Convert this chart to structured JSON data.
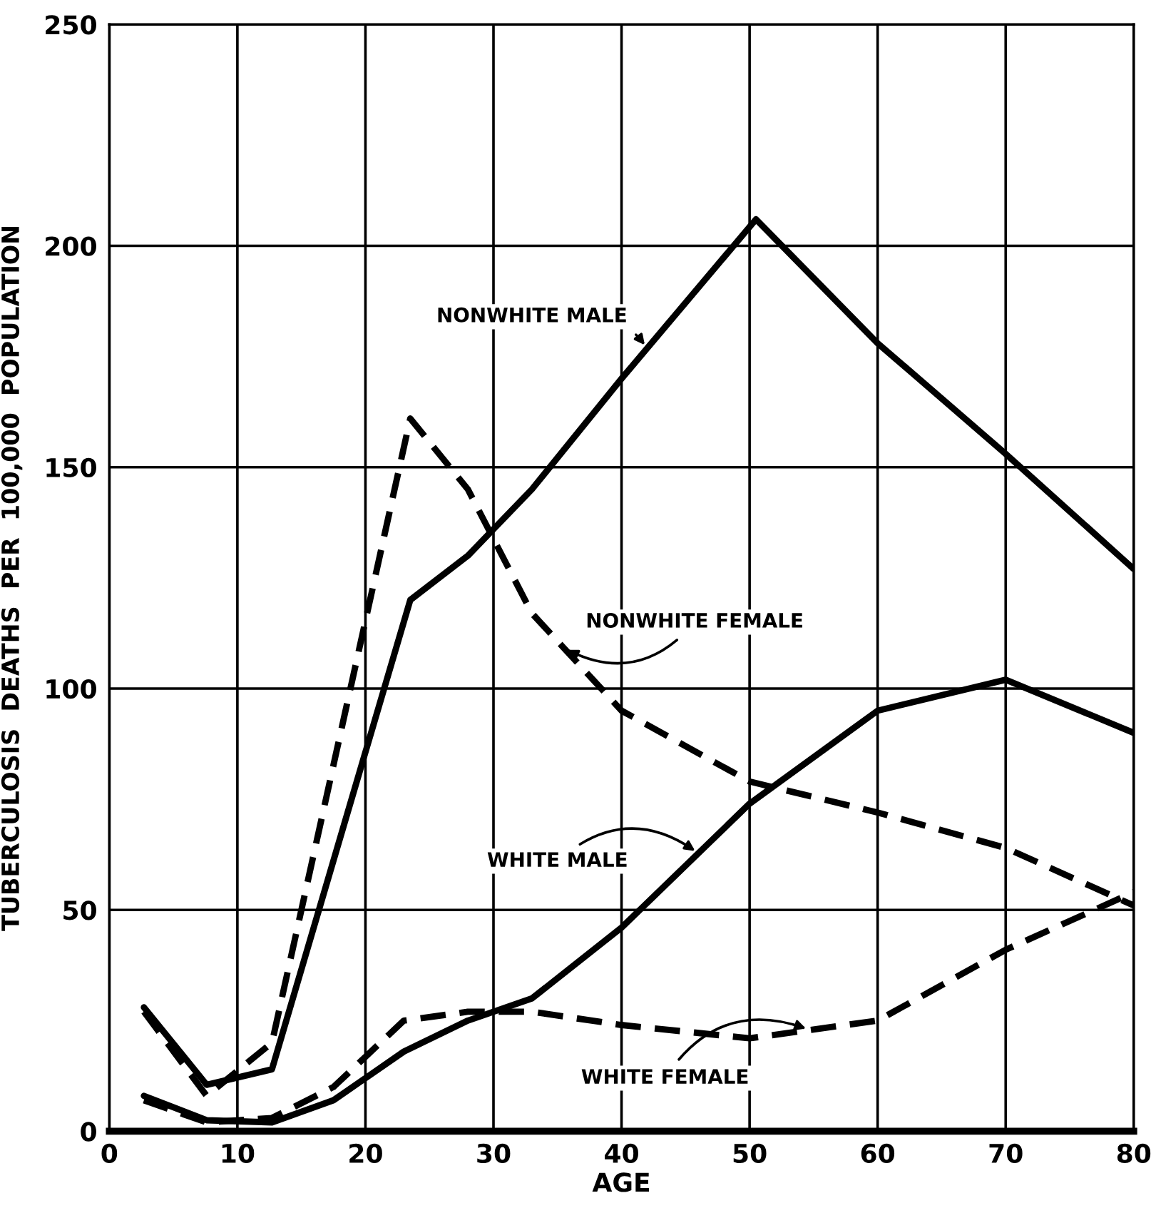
{
  "chart_data": {
    "type": "line",
    "xlabel": "AGE",
    "ylabel": "TUBERCULOSIS  DEATHS  PER  100,000  POPULATION",
    "xlim": [
      0,
      80
    ],
    "ylim": [
      0,
      250
    ],
    "xticks": [
      0,
      10,
      20,
      30,
      40,
      50,
      60,
      70,
      80
    ],
    "yticks": [
      0,
      50,
      100,
      150,
      200,
      250
    ],
    "grid": true,
    "legend": false,
    "marker": "none",
    "series": [
      {
        "name": "NONWHITE MALE",
        "color": "#000000",
        "line_style": "solid",
        "x": [
          2.7,
          7.6,
          12.7,
          23.5,
          28,
          33,
          40,
          50.5,
          60,
          70,
          80
        ],
        "values": [
          28,
          10.5,
          14,
          120,
          130,
          145,
          170,
          206,
          178,
          153,
          127
        ]
      },
      {
        "name": "NONWHITE FEMALE",
        "color": "#000000",
        "line_style": "dashed",
        "x": [
          2.7,
          7.6,
          12.7,
          23.5,
          28,
          33,
          40,
          50,
          60,
          70,
          80
        ],
        "values": [
          27,
          8,
          20,
          161,
          145,
          117,
          95,
          79,
          72,
          64,
          51
        ]
      },
      {
        "name": "WHITE MALE",
        "color": "#000000",
        "line_style": "solid",
        "x": [
          2.7,
          7.6,
          12.7,
          17.5,
          23,
          28,
          33,
          40,
          50,
          60,
          70,
          80
        ],
        "values": [
          8,
          2.5,
          2,
          7,
          18,
          25,
          30,
          46,
          74,
          95,
          102,
          90
        ]
      },
      {
        "name": "WHITE FEMALE",
        "color": "#000000",
        "line_style": "dashed",
        "x": [
          2.7,
          7.6,
          12.7,
          17.5,
          23,
          28,
          33,
          40,
          50,
          60,
          70,
          80
        ],
        "values": [
          7,
          2,
          3,
          10,
          25,
          27,
          27,
          24,
          21,
          25,
          41,
          54
        ]
      }
    ]
  }
}
